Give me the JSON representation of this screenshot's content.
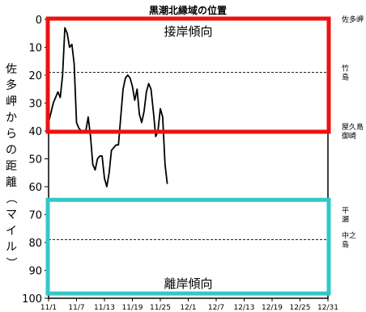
{
  "chart_data": {
    "type": "line",
    "title": "黒潮北縁域の位置",
    "ylabel": "佐多岬からの距離（マイル）",
    "ylim": [
      0,
      100
    ],
    "y_inverted": true,
    "y_ticks": [
      "0",
      "10",
      "20",
      "30",
      "40",
      "50",
      "60",
      "70",
      "80",
      "90",
      "100"
    ],
    "x_ticks": [
      "11/1",
      "11/7",
      "11/13",
      "11/19",
      "11/25",
      "12/1",
      "12/7",
      "12/13",
      "12/19",
      "12/25",
      "12/31"
    ],
    "x_range": [
      0,
      60
    ],
    "reference_lines": [
      {
        "label": "佐多岬",
        "value": 0,
        "style": "none"
      },
      {
        "label": "竹\n島",
        "value": 19,
        "style": "dashed"
      },
      {
        "label": "屋久島\n御崎",
        "value": 40,
        "style": "dashed"
      },
      {
        "label": "平\n瀬",
        "value": 70,
        "style": "none"
      },
      {
        "label": "中之\n島",
        "value": 79,
        "style": "dashed"
      }
    ],
    "series": [
      {
        "x": [
          0,
          1,
          2,
          2.5,
          3,
          3.5,
          4,
          4.5,
          5,
          5.5,
          6,
          6.5,
          7,
          7.5,
          8,
          8.5,
          9,
          9.5,
          10,
          10.5,
          11,
          11.5,
          12,
          12.5,
          13,
          13.5,
          14,
          14.5,
          15,
          15.5,
          16,
          16.5,
          17,
          17.5,
          18,
          18.5,
          19,
          19.5,
          20,
          20.5,
          21,
          21.5,
          22,
          22.5,
          23,
          23.5,
          24,
          24.5,
          25,
          25.5,
          26,
          26.5,
          27,
          27.5,
          28,
          28.5,
          29,
          29.5,
          30,
          30.5,
          31
        ],
        "values": [
          37,
          30,
          26,
          28,
          20,
          3,
          5,
          10,
          9,
          16,
          37,
          39,
          40,
          40,
          40,
          35,
          42,
          52,
          54,
          50,
          49,
          49,
          57,
          60,
          55,
          47,
          46,
          45,
          45,
          35,
          25,
          21,
          20,
          21,
          24,
          29,
          25,
          34,
          37,
          33,
          26,
          23,
          25,
          33,
          42,
          40,
          32,
          35,
          52,
          59,
          null,
          null,
          null,
          null,
          null,
          null,
          null,
          null,
          null,
          null,
          null
        ]
      }
    ],
    "annotations": [
      {
        "label": "接岸傾向",
        "color": "#ee1111",
        "y_range": [
          0,
          40
        ]
      },
      {
        "label": "離岸傾向",
        "color": "#33c8c8",
        "y_range": [
          65,
          98
        ]
      }
    ]
  }
}
